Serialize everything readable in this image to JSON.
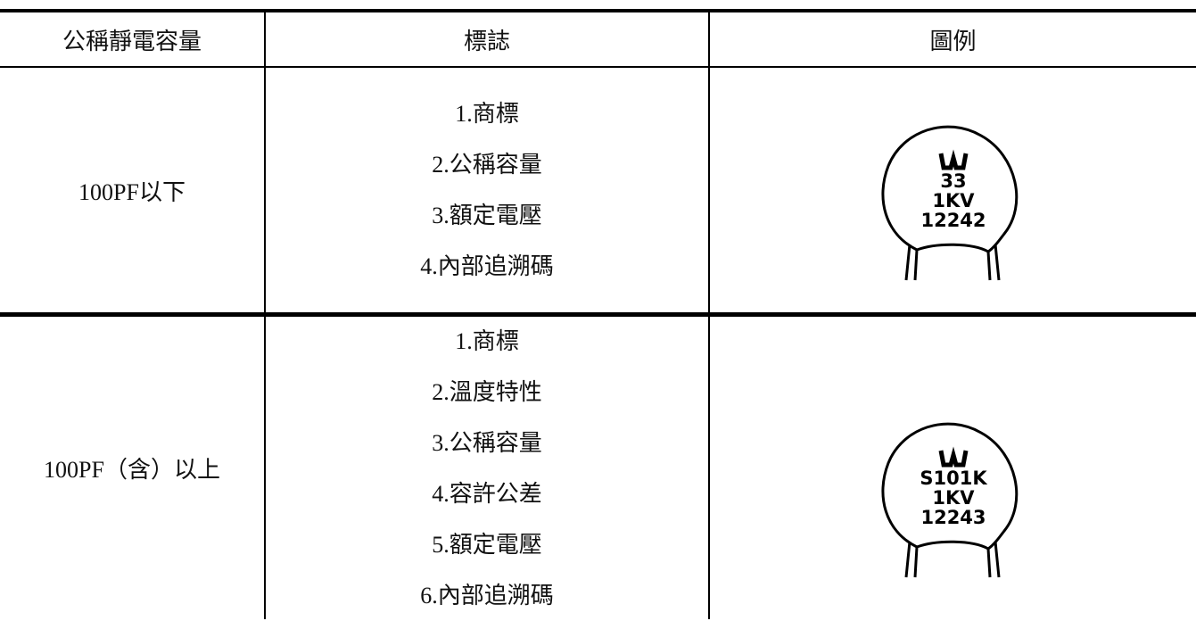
{
  "table": {
    "header": [
      "公稱靜電容量",
      "標誌",
      "圖例"
    ],
    "rows": [
      {
        "capacitance": "100PF以下",
        "markings": [
          "1.商標",
          "2.公稱容量",
          "3.額定電壓",
          "4.內部追溯碼"
        ],
        "example": [
          "33",
          "1KV",
          "12242"
        ]
      },
      {
        "capacitance": "100PF（含）以上",
        "markings": [
          "1.商標",
          "2.溫度特性",
          "3.公稱容量",
          "4.容許公差",
          "5.額定電壓",
          "6.內部追溯碼"
        ],
        "example": [
          "S101K",
          "1KV",
          "12243"
        ]
      }
    ]
  }
}
